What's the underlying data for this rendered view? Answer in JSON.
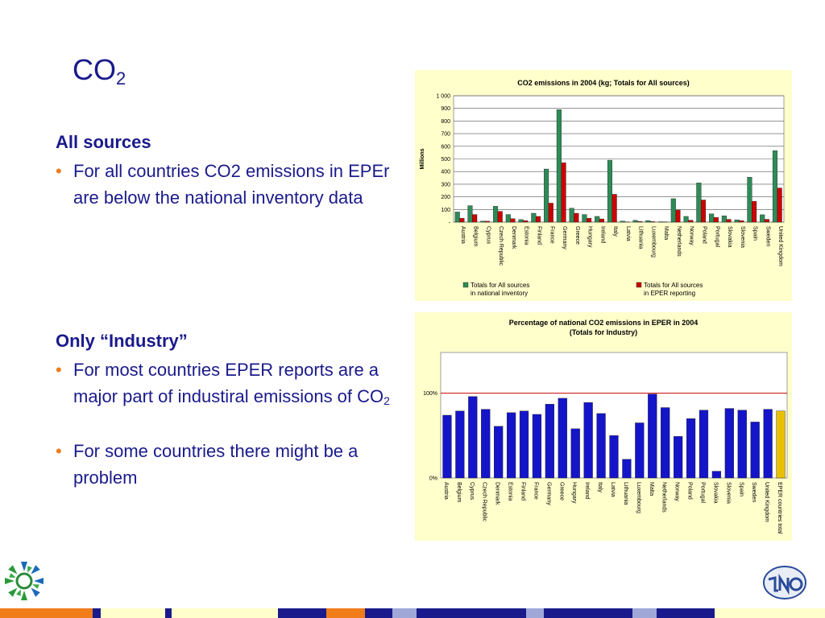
{
  "slide": {
    "title_main": "CO",
    "title_sub": "2",
    "section1": {
      "heading": "All sources",
      "bullet1": "For all countries CO2 emissions in EPEr are below the national inventory data"
    },
    "section2": {
      "heading": "Only “Industry”",
      "bullet1_main": "For most countries EPER reports are a major part of industiral emissions of CO",
      "bullet1_sub": "2",
      "bullet2": "For some countries there might be a problem"
    },
    "bullet_marker": "•"
  },
  "colors": {
    "title": "#1a1a8c",
    "bullet": "#f07c1a",
    "chart_bg": "#ffffcc",
    "inventory_bar": "#2e8b57",
    "eper_bar": "#cc0000",
    "industry_bar": "#1414c8",
    "total_bar": "#e8c000",
    "ref_line": "#cc0000"
  },
  "icons": {
    "left_logo": "eea-sun-logo",
    "right_logo": "tno-logo"
  },
  "chart_data": [
    {
      "type": "bar",
      "title": "CO2 emissions in 2004 (kg; Totals for All sources)",
      "ylabel": "Millions",
      "ylim": [
        0,
        1000
      ],
      "yticks": [
        0,
        100,
        200,
        300,
        400,
        500,
        600,
        700,
        800,
        900,
        1000
      ],
      "ytick_labels": [
        "-",
        "100",
        "200",
        "300",
        "400",
        "500",
        "600",
        "700",
        "800",
        "900",
        "1 000"
      ],
      "grid": true,
      "legend_position": "bottom",
      "categories": [
        "Austria",
        "Belgium",
        "Cyprus",
        "Czech Republic",
        "Denmark",
        "Estonia",
        "Finland",
        "France",
        "Germany",
        "Greece",
        "Hungary",
        "Ireland",
        "Italy",
        "Latvia",
        "Lithuania",
        "Luxembourg",
        "Malta",
        "Netherlands",
        "Norway",
        "Poland",
        "Portugal",
        "Slovakia",
        "Slovenia",
        "Spain",
        "Sweden",
        "United Kingdom"
      ],
      "series": [
        {
          "name": "Totals for All sources in national inventory",
          "name_lines": [
            "Totals for All sources",
            "in national inventory"
          ],
          "values": [
            80,
            130,
            8,
            125,
            60,
            20,
            70,
            420,
            890,
            110,
            60,
            45,
            490,
            8,
            14,
            12,
            3,
            185,
            45,
            310,
            65,
            50,
            18,
            355,
            58,
            565
          ]
        },
        {
          "name": "Totals for All sources in EPER reporting",
          "name_lines": [
            "Totals for All sources",
            "in EPER reporting"
          ],
          "values": [
            30,
            60,
            7,
            85,
            27,
            12,
            45,
            150,
            470,
            70,
            30,
            25,
            220,
            2,
            5,
            4,
            2,
            95,
            15,
            175,
            37,
            22,
            12,
            165,
            22,
            270
          ]
        }
      ]
    },
    {
      "type": "bar",
      "title": "Percentage of national CO2 emissions in EPER in 2004",
      "subtitle": "(Totals for Industry)",
      "ylim": [
        0,
        1.48
      ],
      "yticks": [
        0,
        1
      ],
      "ytick_labels": [
        "0%",
        "100%"
      ],
      "reference_line": 1,
      "grid": true,
      "categories": [
        "Austria",
        "Belgium",
        "Cyprus",
        "Czech Republic",
        "Denmark",
        "Estonia",
        "Finland",
        "France",
        "Germany",
        "Greece",
        "Hungary",
        "Ireland",
        "Italy",
        "Latvia",
        "Lithuania",
        "Luxembourg",
        "Malta",
        "Netherlands",
        "Norway",
        "Poland",
        "Portugal",
        "Slovakia",
        "Slovenia",
        "Spain",
        "Sweden",
        "United Kingdom",
        "EPER countries total"
      ],
      "values": [
        0.74,
        0.79,
        0.96,
        0.81,
        0.61,
        0.77,
        0.79,
        0.75,
        0.87,
        0.94,
        0.58,
        0.89,
        0.76,
        0.5,
        0.22,
        0.65,
        0.99,
        0.83,
        0.49,
        0.7,
        0.8,
        0.08,
        0.82,
        0.8,
        0.66,
        0.81,
        0.79
      ],
      "highlight_last": true
    }
  ]
}
